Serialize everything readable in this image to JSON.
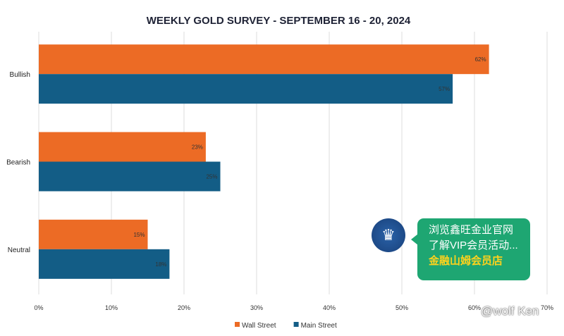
{
  "chart_data": {
    "type": "bar",
    "orientation": "horizontal",
    "title": "WEEKLY GOLD SURVEY - SEPTEMBER 16 - 20, 2024",
    "categories": [
      "Bullish",
      "Bearish",
      "Neutral"
    ],
    "series": [
      {
        "name": "Wall Street",
        "color": "#ec6b25",
        "values": [
          62,
          23,
          15
        ],
        "labels": [
          "62%",
          "23%",
          "15%"
        ]
      },
      {
        "name": "Main Street",
        "color": "#135d86",
        "values": [
          57,
          25,
          18
        ],
        "labels": [
          "57%",
          "25%",
          "18%"
        ]
      }
    ],
    "xlim": [
      0,
      70
    ],
    "xticks": [
      "0%",
      "10%",
      "20%",
      "30%",
      "40%",
      "50%",
      "60%",
      "70%"
    ],
    "grid": true,
    "legend": "bottom"
  },
  "overlay": {
    "bubble_lines": [
      "浏览鑫旺金业官网",
      "了解VIP会员活动..."
    ],
    "bubble_highlight": "金融山姆会员店",
    "avatar_icon": "crown-icon",
    "watermark": "@wolf Ken"
  }
}
